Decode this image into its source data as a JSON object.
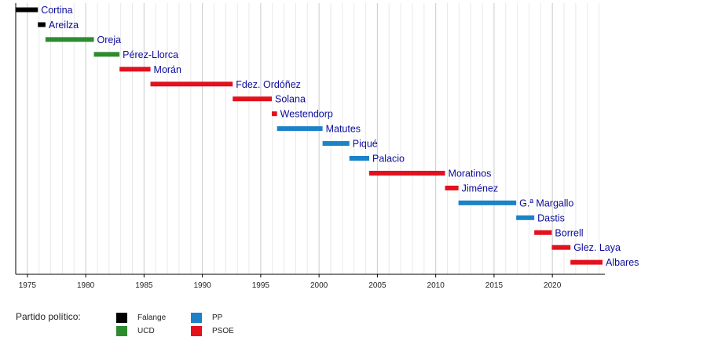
{
  "chart_data": {
    "type": "bar",
    "subtype": "timeline",
    "xlim": [
      1974.0,
      2024.5
    ],
    "xticks": [
      1975,
      1980,
      1985,
      1990,
      1995,
      2000,
      2005,
      2010,
      2015,
      2020
    ],
    "minor_grid_step": 1,
    "grid": true,
    "parties": {
      "Falange": "#000000",
      "UCD": "#2e8b2e",
      "PP": "#1b82c8",
      "PSOE": "#e3101e"
    },
    "ministers": [
      {
        "name": "Cortina",
        "party": "Falange",
        "start": 1974.0,
        "end": 1975.9
      },
      {
        "name": "Areilza",
        "party": "Falange",
        "start": 1975.9,
        "end": 1976.55
      },
      {
        "name": "Oreja",
        "party": "UCD",
        "start": 1976.55,
        "end": 1980.7
      },
      {
        "name": "Pérez-Llorca",
        "party": "UCD",
        "start": 1980.7,
        "end": 1982.9
      },
      {
        "name": "Morán",
        "party": "PSOE",
        "start": 1982.9,
        "end": 1985.55
      },
      {
        "name": "Fdez. Ordóñez",
        "party": "PSOE",
        "start": 1985.55,
        "end": 1992.6
      },
      {
        "name": "Solana",
        "party": "PSOE",
        "start": 1992.6,
        "end": 1995.95
      },
      {
        "name": "Westendorp",
        "party": "PSOE",
        "start": 1995.95,
        "end": 1996.4
      },
      {
        "name": "Matutes",
        "party": "PP",
        "start": 1996.4,
        "end": 2000.3
      },
      {
        "name": "Piqué",
        "party": "PP",
        "start": 2000.3,
        "end": 2002.6
      },
      {
        "name": "Palacio",
        "party": "PP",
        "start": 2002.6,
        "end": 2004.3
      },
      {
        "name": "Moratinos",
        "party": "PSOE",
        "start": 2004.3,
        "end": 2010.8
      },
      {
        "name": "Jiménez",
        "party": "PSOE",
        "start": 2010.8,
        "end": 2011.95
      },
      {
        "name": "G.ª Margallo",
        "party": "PP",
        "start": 2011.95,
        "end": 2016.9
      },
      {
        "name": "Dastis",
        "party": "PP",
        "start": 2016.9,
        "end": 2018.45
      },
      {
        "name": "Borrell",
        "party": "PSOE",
        "start": 2018.45,
        "end": 2019.95
      },
      {
        "name": "Glez. Laya",
        "party": "PSOE",
        "start": 2019.95,
        "end": 2021.55
      },
      {
        "name": "Albares",
        "party": "PSOE",
        "start": 2021.55,
        "end": 2024.3
      }
    ]
  },
  "legend": {
    "title": "Partido político:",
    "items": [
      {
        "label": "Falange",
        "color": "#000000"
      },
      {
        "label": "UCD",
        "color": "#2e8b2e"
      },
      {
        "label": "PP",
        "color": "#1b82c8"
      },
      {
        "label": "PSOE",
        "color": "#e3101e"
      }
    ]
  }
}
